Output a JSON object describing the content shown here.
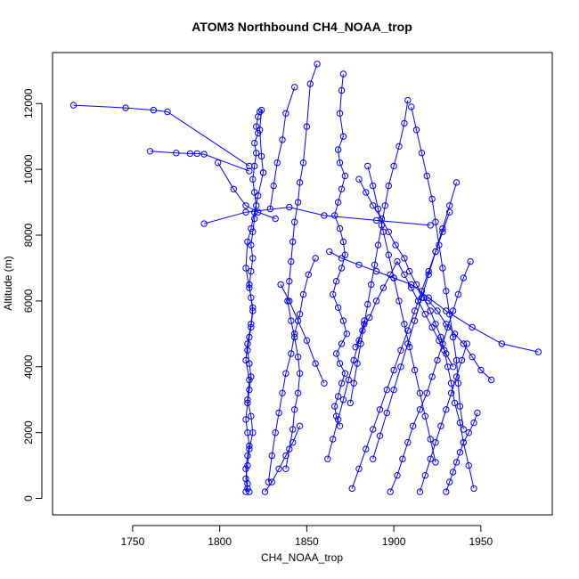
{
  "chart_data": {
    "type": "line",
    "title": "ATOM3 Northbound CH4_NOAA_trop",
    "xlabel": "CH4_NOAA_trop",
    "ylabel": "Altitude (m)",
    "xlim": [
      1704,
      1991
    ],
    "ylim": [
      -500,
      13550
    ],
    "xticks": [
      1750,
      1800,
      1850,
      1900,
      1950
    ],
    "yticks": [
      0,
      2000,
      4000,
      6000,
      8000,
      10000,
      12000
    ],
    "markers": "open circles",
    "color": "#0000ff",
    "series": [
      {
        "x": [
          1815,
          1816,
          1815,
          1816,
          1817,
          1816,
          1815,
          1816,
          1817,
          1818,
          1817,
          1816,
          1817,
          1818,
          1819,
          1818,
          1817,
          1818,
          1819,
          1818,
          1819,
          1820,
          1821,
          1820,
          1819,
          1820,
          1821,
          1820,
          1822,
          1821,
          1822,
          1823,
          1824,
          1823,
          1824,
          1825
        ],
        "y": [
          200,
          450,
          900,
          1300,
          1600,
          2000,
          2400,
          2900,
          3300,
          3700,
          4100,
          4500,
          4900,
          5200,
          5700,
          6100,
          6500,
          6900,
          7300,
          7700,
          8100,
          8500,
          8900,
          9300,
          9700,
          10100,
          10500,
          10800,
          11100,
          11300,
          11600,
          11750,
          11800,
          11200,
          10400,
          9900
        ]
      },
      {
        "x": [
          1825,
          1822,
          1820,
          1818,
          1816,
          1815,
          1817,
          1819,
          1818,
          1816,
          1815,
          1817,
          1816,
          1818,
          1819,
          1817,
          1816,
          1815,
          1816,
          1817
        ],
        "y": [
          9900,
          9200,
          8700,
          8200,
          7800,
          7000,
          6400,
          5800,
          5300,
          4700,
          4200,
          3600,
          3000,
          2500,
          2000,
          1500,
          1000,
          600,
          300,
          200
        ]
      },
      {
        "x": [
          1716,
          1746,
          1762,
          1770,
          1817
        ],
        "y": [
          11950,
          11870,
          11800,
          11750,
          10100
        ]
      },
      {
        "x": [
          1760,
          1775,
          1783,
          1787,
          1791,
          1817
        ],
        "y": [
          10550,
          10500,
          10480,
          10480,
          10460,
          9950
        ]
      },
      {
        "x": [
          1799,
          1808,
          1815,
          1822,
          1832
        ],
        "y": [
          10200,
          9400,
          8900,
          8700,
          8500
        ]
      },
      {
        "x": [
          1791,
          1815,
          1840,
          1860,
          1890,
          1921
        ],
        "y": [
          8350,
          8700,
          8850,
          8600,
          8450,
          8300
        ]
      },
      {
        "x": [
          1871,
          1870,
          1869,
          1871,
          1868,
          1869,
          1872,
          1870,
          1868,
          1866,
          1869,
          1871,
          1872,
          1870,
          1867,
          1865,
          1868,
          1871,
          1873,
          1870,
          1867,
          1869,
          1872,
          1870,
          1868,
          1866,
          1867,
          1869
        ],
        "y": [
          12900,
          12400,
          11700,
          11000,
          10600,
          10200,
          9800,
          9400,
          9000,
          8600,
          8200,
          7800,
          7400,
          7000,
          6600,
          6200,
          5800,
          5400,
          5000,
          4700,
          4400,
          4100,
          3800,
          3500,
          3100,
          2800,
          2500,
          2200
        ]
      },
      {
        "x": [
          1856,
          1852,
          1850,
          1848,
          1846,
          1845,
          1843,
          1842,
          1841,
          1840,
          1839,
          1841,
          1843,
          1845,
          1846,
          1845,
          1843,
          1842,
          1840,
          1838
        ],
        "y": [
          13200,
          12600,
          11300,
          10200,
          9600,
          9000,
          8400,
          7800,
          7200,
          6600,
          6000,
          5400,
          4900,
          4300,
          3800,
          3200,
          2700,
          2100,
          1500,
          900
        ]
      },
      {
        "x": [
          1855,
          1851,
          1848,
          1846,
          1843,
          1841,
          1838,
          1836,
          1834,
          1832,
          1830,
          1828
        ],
        "y": [
          7300,
          6800,
          6200,
          5600,
          5000,
          4400,
          3800,
          3200,
          2600,
          2000,
          1300,
          500
        ]
      },
      {
        "x": [
          1843,
          1838,
          1836,
          1833,
          1831,
          1829
        ],
        "y": [
          12500,
          11700,
          10900,
          10200,
          9500,
          8800
        ]
      },
      {
        "x": [
          1880,
          1884,
          1888,
          1893,
          1897,
          1901,
          1906,
          1909,
          1913,
          1917,
          1921,
          1924,
          1927,
          1929,
          1931,
          1933,
          1935,
          1938,
          1940,
          1943,
          1946
        ],
        "y": [
          9700,
          9300,
          8900,
          8500,
          8100,
          7700,
          7300,
          6900,
          6500,
          6100,
          5700,
          5300,
          4900,
          4500,
          4000,
          3500,
          2900,
          2300,
          1700,
          1000,
          300
        ]
      },
      {
        "x": [
          1908,
          1906,
          1903,
          1900,
          1897,
          1895,
          1893,
          1891,
          1889,
          1887,
          1885,
          1883,
          1881,
          1879,
          1877,
          1875
        ],
        "y": [
          12100,
          11400,
          10700,
          10100,
          9500,
          8900,
          8300,
          7700,
          7100,
          6500,
          5900,
          5300,
          4700,
          4100,
          3500,
          2900
        ]
      },
      {
        "x": [
          1910,
          1913,
          1916,
          1919,
          1922,
          1924,
          1926,
          1928,
          1930,
          1932,
          1934,
          1936,
          1937,
          1938,
          1940
        ],
        "y": [
          11900,
          11200,
          10500,
          9800,
          9100,
          8400,
          7700,
          7000,
          6300,
          5600,
          4900,
          4200,
          3500,
          2800,
          2100
        ]
      },
      {
        "x": [
          1898,
          1902,
          1905,
          1908,
          1911,
          1915,
          1919,
          1922,
          1925,
          1928,
          1931,
          1934,
          1937,
          1940,
          1944
        ],
        "y": [
          200,
          700,
          1200,
          1700,
          2200,
          2700,
          3200,
          3700,
          4200,
          4700,
          5200,
          5700,
          6200,
          6700,
          7200
        ]
      },
      {
        "x": [
          1888,
          1892,
          1896,
          1900,
          1904,
          1908,
          1912,
          1916,
          1920,
          1924,
          1928,
          1932,
          1936
        ],
        "y": [
          1200,
          1900,
          2600,
          3300,
          4000,
          4700,
          5400,
          6100,
          6800,
          7500,
          8200,
          8900,
          9600
        ]
      },
      {
        "x": [
          1878,
          1882,
          1886,
          1890,
          1894,
          1898,
          1902,
          1906,
          1910,
          1914,
          1918,
          1922,
          1926,
          1930,
          1934
        ],
        "y": [
          4600,
          5100,
          5500,
          6000,
          6400,
          6800,
          7200,
          6800,
          6400,
          6000,
          5600,
          5200,
          4800,
          4400,
          4000
        ]
      },
      {
        "x": [
          1863,
          1870,
          1880,
          1890,
          1900,
          1910,
          1920,
          1930,
          1945,
          1962,
          1983
        ],
        "y": [
          7500,
          7300,
          7100,
          6900,
          6700,
          6500,
          6100,
          5700,
          5200,
          4700,
          4450
        ]
      },
      {
        "x": [
          1920,
          1925,
          1930,
          1935,
          1940,
          1945,
          1950,
          1956
        ],
        "y": [
          6000,
          5700,
          5300,
          5000,
          4700,
          4300,
          3900,
          3600
        ]
      },
      {
        "x": [
          1885,
          1888,
          1891,
          1894,
          1897,
          1900,
          1903,
          1906,
          1909,
          1912,
          1915,
          1918,
          1921,
          1924
        ],
        "y": [
          10100,
          9500,
          8800,
          8100,
          7400,
          6700,
          6000,
          5300,
          4600,
          3900,
          3200,
          2500,
          1800,
          1100
        ]
      },
      {
        "x": [
          1876,
          1880,
          1884,
          1888,
          1892,
          1896,
          1900,
          1904,
          1908,
          1912,
          1916,
          1920,
          1924,
          1928,
          1932
        ],
        "y": [
          300,
          900,
          1500,
          2100,
          2700,
          3300,
          3900,
          4500,
          5100,
          5700,
          6300,
          6900,
          7500,
          8100,
          8700
        ]
      },
      {
        "x": [
          1915,
          1918,
          1921,
          1924,
          1927,
          1930,
          1933,
          1936,
          1939,
          1942
        ],
        "y": [
          200,
          700,
          1200,
          1700,
          2200,
          2700,
          3200,
          3700,
          4200,
          4700
        ]
      },
      {
        "x": [
          1930,
          1932,
          1934,
          1936,
          1938,
          1940,
          1943,
          1946,
          1948
        ],
        "y": [
          200,
          500,
          800,
          1100,
          1400,
          1700,
          2000,
          2300,
          2600
        ]
      },
      {
        "x": [
          1862,
          1865,
          1868,
          1871,
          1874,
          1877,
          1880,
          1883
        ],
        "y": [
          1200,
          1800,
          2400,
          3000,
          3600,
          4200,
          4800,
          5400
        ]
      },
      {
        "x": [
          1835,
          1840,
          1845,
          1850,
          1855,
          1860
        ],
        "y": [
          6500,
          6000,
          5400,
          4800,
          4100,
          3500
        ]
      },
      {
        "x": [
          1826,
          1830,
          1834,
          1838,
          1842,
          1846
        ],
        "y": [
          200,
          500,
          900,
          1300,
          1700,
          2200
        ]
      }
    ]
  }
}
